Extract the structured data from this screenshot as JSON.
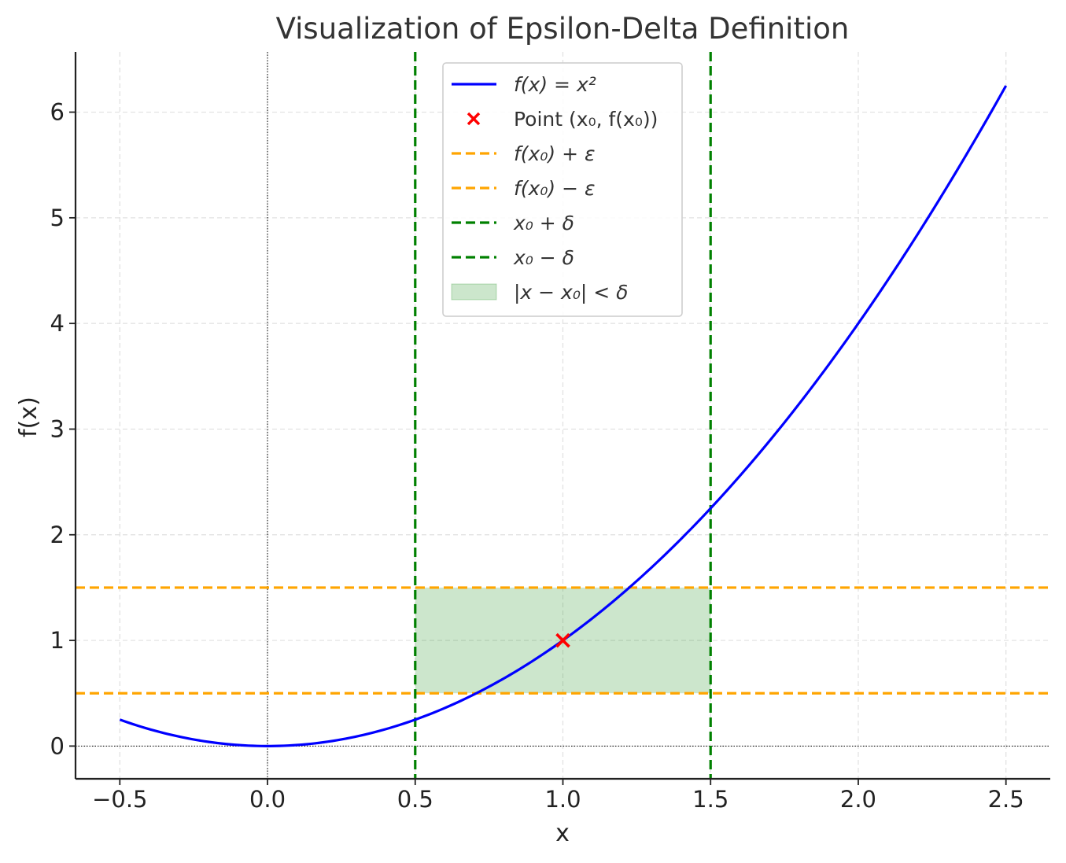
{
  "chart_data": {
    "type": "line",
    "title": "Visualization of Epsilon-Delta Definition",
    "xlabel": "x",
    "ylabel": "f(x)",
    "xlim": [
      -0.65,
      2.65
    ],
    "ylim": [
      -0.31,
      6.57
    ],
    "x_ticks": [
      -0.5,
      0.0,
      0.5,
      1.0,
      1.5,
      2.0,
      2.5
    ],
    "x_tick_labels": [
      "−0.5",
      "0.0",
      "0.5",
      "1.0",
      "1.5",
      "2.0",
      "2.5"
    ],
    "y_ticks": [
      0,
      1,
      2,
      3,
      4,
      5,
      6
    ],
    "y_tick_labels": [
      "0",
      "1",
      "2",
      "3",
      "4",
      "5",
      "6"
    ],
    "grid": true,
    "legend_placement": "top-center",
    "series": [
      {
        "name": "f(x) = x²",
        "kind": "line",
        "function": "x^2",
        "x_range": [
          -0.5,
          2.5
        ],
        "color": "#0000ff"
      },
      {
        "name": "Point (x₀, f(x₀))",
        "kind": "scatter",
        "marker": "x",
        "x": [
          1.0
        ],
        "y": [
          1.0
        ],
        "color": "#ff0000"
      },
      {
        "name": "f(x₀) + ε",
        "kind": "hline",
        "y": 1.5,
        "color": "#ffa500",
        "style": "dashed"
      },
      {
        "name": "f(x₀) − ε",
        "kind": "hline",
        "y": 0.5,
        "color": "#ffa500",
        "style": "dashed"
      },
      {
        "name": "x₀ + δ",
        "kind": "vline",
        "x": 1.5,
        "color": "#008000",
        "style": "dashed"
      },
      {
        "name": "x₀ − δ",
        "kind": "vline",
        "x": 0.5,
        "color": "#008000",
        "style": "dashed"
      },
      {
        "name": "|x − x₀| < δ",
        "kind": "fill",
        "x": [
          0.5,
          1.5
        ],
        "y": [
          0.5,
          1.5
        ],
        "color": "#008000",
        "alpha": 0.2
      }
    ],
    "reference_lines": [
      {
        "kind": "hline",
        "y": 0,
        "color": "#000000",
        "style": "dotted"
      },
      {
        "kind": "vline",
        "x": 0,
        "color": "#000000",
        "style": "dotted"
      }
    ]
  }
}
